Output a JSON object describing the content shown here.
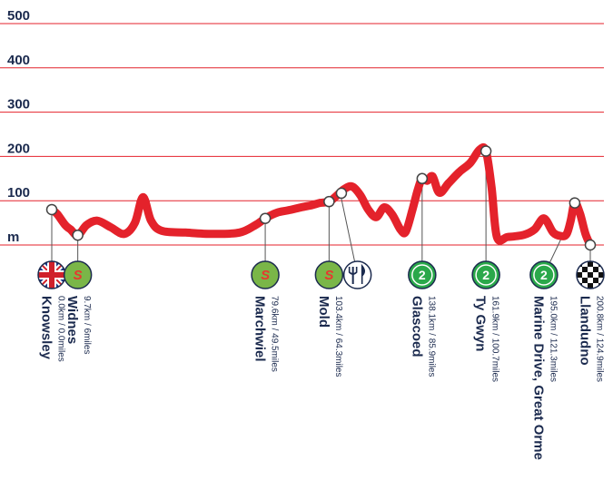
{
  "colors": {
    "profile": "#e4222b",
    "gridline": "#e4222b",
    "text": "#1b2a4e",
    "sprint_fill": "#7ab648",
    "sprint_letter": "#e8372f",
    "climb_fill": "#2aa84a",
    "marker_fill": "#ffffff",
    "marker_stroke": "#444444"
  },
  "chart_data": {
    "type": "area",
    "title": "",
    "ylabel": "m",
    "xlabel": "",
    "xlim": [
      0,
      200.8
    ],
    "ylim": [
      0,
      500
    ],
    "y_ticks": [
      {
        "value": 500,
        "label": "500"
      },
      {
        "value": 400,
        "label": "400"
      },
      {
        "value": 300,
        "label": "300"
      },
      {
        "value": 200,
        "label": "200"
      },
      {
        "value": 100,
        "label": "100"
      },
      {
        "value": 0,
        "label": "m"
      }
    ],
    "grid": true,
    "profile": [
      [
        0,
        80
      ],
      [
        2,
        70
      ],
      [
        5,
        45
      ],
      [
        7,
        35
      ],
      [
        9.7,
        22
      ],
      [
        13,
        45
      ],
      [
        17,
        55
      ],
      [
        22,
        40
      ],
      [
        27,
        25
      ],
      [
        31,
        50
      ],
      [
        34,
        108
      ],
      [
        37,
        55
      ],
      [
        41,
        32
      ],
      [
        50,
        28
      ],
      [
        60,
        25
      ],
      [
        70,
        28
      ],
      [
        76,
        45
      ],
      [
        79.6,
        60
      ],
      [
        84,
        73
      ],
      [
        88,
        78
      ],
      [
        93,
        85
      ],
      [
        97,
        90
      ],
      [
        100,
        95
      ],
      [
        103.4,
        98
      ],
      [
        106,
        110
      ],
      [
        109,
        126
      ],
      [
        112,
        132
      ],
      [
        115,
        113
      ],
      [
        118,
        80
      ],
      [
        121,
        63
      ],
      [
        124,
        85
      ],
      [
        127,
        68
      ],
      [
        130,
        35
      ],
      [
        132,
        30
      ],
      [
        134.5,
        80
      ],
      [
        136.5,
        125
      ],
      [
        138.1,
        150
      ],
      [
        140,
        145
      ],
      [
        142,
        155
      ],
      [
        144.5,
        118
      ],
      [
        148,
        140
      ],
      [
        152,
        165
      ],
      [
        156,
        185
      ],
      [
        159.5,
        215
      ],
      [
        161.9,
        212
      ],
      [
        164,
        130
      ],
      [
        166,
        18
      ],
      [
        170,
        18
      ],
      [
        176,
        23
      ],
      [
        180,
        35
      ],
      [
        183.5,
        60
      ],
      [
        187,
        28
      ],
      [
        190,
        20
      ],
      [
        192,
        25
      ],
      [
        193.5,
        55
      ],
      [
        195,
        95
      ],
      [
        197,
        70
      ],
      [
        199,
        25
      ],
      [
        200.8,
        0
      ]
    ],
    "markers": [
      {
        "x": 0,
        "y": 80
      },
      {
        "x": 9.7,
        "y": 22
      },
      {
        "x": 79.6,
        "y": 60
      },
      {
        "x": 103.4,
        "y": 98
      },
      {
        "x": 108,
        "y": 117
      },
      {
        "x": 138.1,
        "y": 150
      },
      {
        "x": 161.9,
        "y": 212
      },
      {
        "x": 195,
        "y": 95
      },
      {
        "x": 200.8,
        "y": 0
      }
    ],
    "stops": [
      {
        "name": "Knowsley",
        "distance": "0.0km / 0.0miles",
        "x": 0,
        "marker_x": 0,
        "icon": "flag"
      },
      {
        "name": "Widnes",
        "distance": "9.7km / 6miles",
        "x": 9.7,
        "marker_x": 9.7,
        "icon": "sprint",
        "icon_label": "S"
      },
      {
        "name": "Marchwiel",
        "distance": "79.6km / 49.5miles",
        "x": 79.6,
        "marker_x": 79.6,
        "icon": "sprint",
        "icon_label": "S"
      },
      {
        "name": "Mold",
        "distance": "103.4km / 64.3miles",
        "x": 103.4,
        "marker_x": 103.4,
        "icon": "sprint",
        "icon_label": "S"
      },
      {
        "name": "",
        "distance": "",
        "x": 114,
        "marker_x": 108,
        "icon": "food"
      },
      {
        "name": "Glascoed",
        "distance": "138.1km / 85.9miles",
        "x": 138.1,
        "marker_x": 138.1,
        "icon": "climb",
        "icon_label": "2"
      },
      {
        "name": "Ty Gwyn",
        "distance": "161.9km / 100.7miles",
        "x": 161.9,
        "marker_x": 161.9,
        "icon": "climb",
        "icon_label": "2"
      },
      {
        "name": "Marine Drive, Great Orme",
        "distance": "195.0km / 121.3miles",
        "x": 183.5,
        "marker_x": 195,
        "icon": "climb",
        "icon_label": "2"
      },
      {
        "name": "Llandudno",
        "distance": "200.8km / 124.9miles",
        "x": 200.8,
        "marker_x": 200.8,
        "icon": "finish"
      }
    ]
  }
}
